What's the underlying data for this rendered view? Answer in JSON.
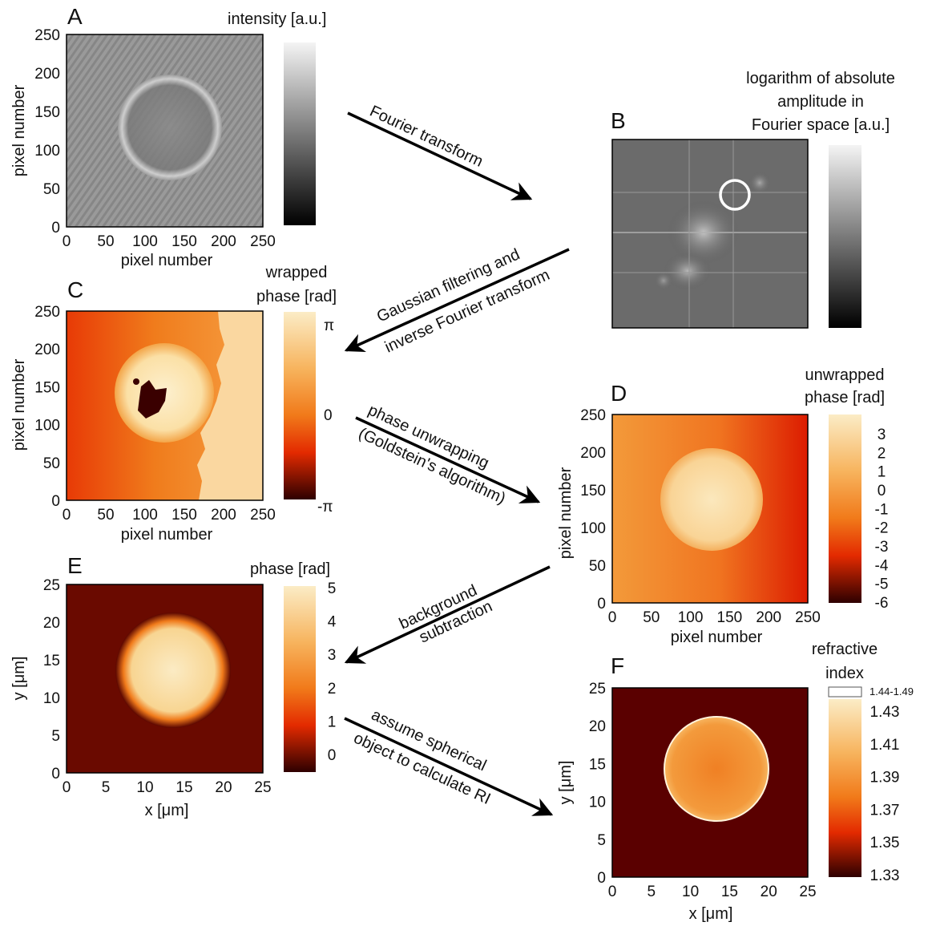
{
  "panels": {
    "A": {
      "letter": "A",
      "colorbar_title": "intensity [a.u.]",
      "xlabel": "pixel number",
      "ylabel": "pixel number",
      "xticks": [
        "0",
        "50",
        "100",
        "150",
        "200",
        "250"
      ],
      "yticks": [
        "0",
        "50",
        "100",
        "150",
        "200",
        "250"
      ]
    },
    "B": {
      "letter": "B",
      "colorbar_title": [
        "logarithm of absolute",
        "amplitude in",
        "Fourier space [a.u.]"
      ]
    },
    "C": {
      "letter": "C",
      "colorbar_title": [
        "wrapped",
        "phase [rad]"
      ],
      "colorbar_ticks": [
        "π",
        "0",
        "-π"
      ],
      "xlabel": "pixel number",
      "ylabel": "pixel number",
      "xticks": [
        "0",
        "50",
        "100",
        "150",
        "200",
        "250"
      ],
      "yticks": [
        "0",
        "50",
        "100",
        "150",
        "200",
        "250"
      ]
    },
    "D": {
      "letter": "D",
      "colorbar_title": [
        "unwrapped",
        "phase [rad]"
      ],
      "colorbar_ticks": [
        "3",
        "2",
        "1",
        "0",
        "-1",
        "-2",
        "-3",
        "-4",
        "-5",
        "-6"
      ],
      "xlabel": "pixel number",
      "ylabel": "pixel number",
      "xticks": [
        "0",
        "50",
        "100",
        "150",
        "200",
        "250"
      ],
      "yticks": [
        "0",
        "50",
        "100",
        "150",
        "200",
        "250"
      ]
    },
    "E": {
      "letter": "E",
      "colorbar_title": "phase [rad]",
      "colorbar_ticks": [
        "5",
        "4",
        "3",
        "2",
        "1",
        "0"
      ],
      "xlabel": "x [μm]",
      "ylabel": "y [μm]",
      "xticks": [
        "0",
        "5",
        "10",
        "15",
        "20",
        "25"
      ],
      "yticks": [
        "0",
        "5",
        "10",
        "15",
        "20",
        "25"
      ]
    },
    "F": {
      "letter": "F",
      "colorbar_title": [
        "refractive",
        "index"
      ],
      "colorbar_overflow": "1.44-1.49",
      "colorbar_ticks": [
        "1.43",
        "1.41",
        "1.39",
        "1.37",
        "1.35",
        "1.33"
      ],
      "xlabel": "x [μm]",
      "ylabel": "y [μm]",
      "xticks": [
        "0",
        "5",
        "10",
        "15",
        "20",
        "25"
      ],
      "yticks": [
        "0",
        "5",
        "10",
        "15",
        "20",
        "25"
      ]
    }
  },
  "arrows": {
    "a1": [
      "Fourier transform"
    ],
    "a2": [
      "Gaussian filtering and",
      "inverse Fourier transform"
    ],
    "a3": [
      "phase unwrapping",
      "(Goldstein's algorithm)"
    ],
    "a4": [
      "background",
      "subtraction"
    ],
    "a5": [
      "assume spherical",
      "object to calculate RI"
    ]
  },
  "colors": {
    "heat_dark": "#3d0000",
    "heat_red": "#e01a00",
    "heat_orange": "#f5901e",
    "heat_light": "#fbe7b8",
    "line": "#000000"
  }
}
